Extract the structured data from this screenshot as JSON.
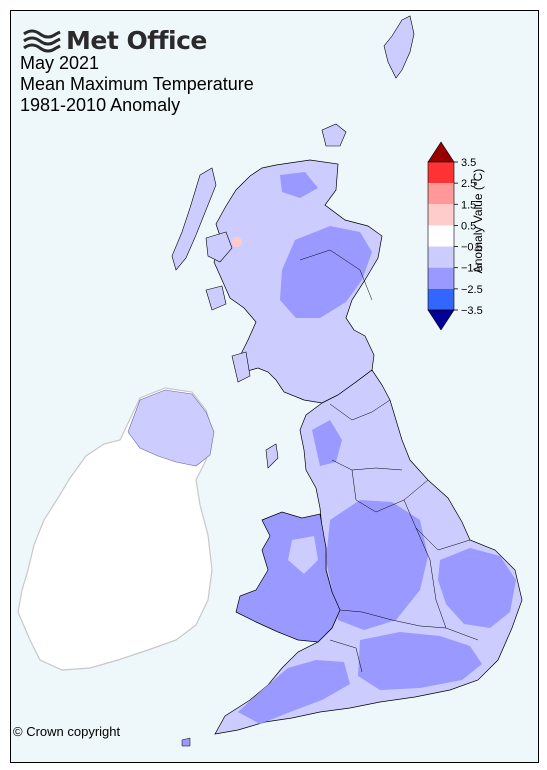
{
  "brand": {
    "name": "Met Office",
    "logo_icon": "met-office-waves-icon"
  },
  "titles": {
    "line1": "May 2021",
    "line2": "Mean Maximum Temperature",
    "line3": "1981-2010 Anomaly"
  },
  "copyright": "© Crown copyright",
  "colorbar": {
    "title": "Anomaly Value (°C)",
    "ticks": [
      "3.5",
      "2.5",
      "1.5",
      "0.5",
      "−0.5",
      "−1.5",
      "−2.5",
      "−3.5"
    ],
    "bands": [
      {
        "from": 2.5,
        "to": 3.5,
        "color": "#ff3333"
      },
      {
        "from": 1.5,
        "to": 2.5,
        "color": "#ff9999"
      },
      {
        "from": 0.5,
        "to": 1.5,
        "color": "#ffcccc"
      },
      {
        "from": -0.5,
        "to": 0.5,
        "color": "#ffffff"
      },
      {
        "from": -1.5,
        "to": -0.5,
        "color": "#ccccff"
      },
      {
        "from": -2.5,
        "to": -1.5,
        "color": "#9999ff"
      },
      {
        "from": -3.5,
        "to": -2.5,
        "color": "#3366ff"
      }
    ],
    "over_color": "#990000",
    "under_color": "#000099"
  },
  "map_colors": {
    "sea": "#eef7fa",
    "ireland": "#ffffff",
    "ireland_border": "#c8c8c8",
    "light_anomaly": "#ccccff",
    "medium_anomaly": "#9999ff",
    "warm_spot": "#ffcccc"
  }
}
